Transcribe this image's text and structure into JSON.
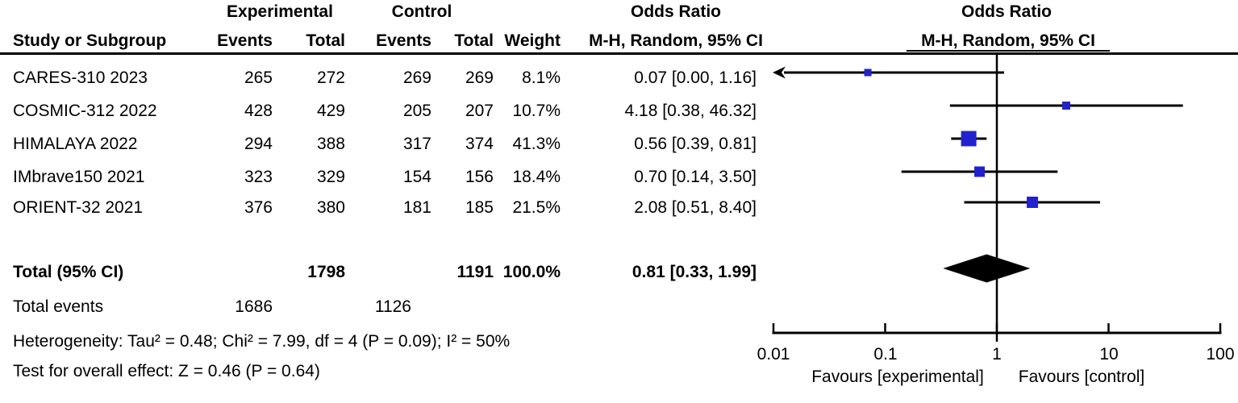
{
  "figure": {
    "group_headers": {
      "experimental": "Experimental",
      "control": "Control"
    },
    "columns": {
      "study": "Study or Subgroup",
      "events": "Events",
      "total": "Total",
      "weight": "Weight"
    },
    "or_col_header": {
      "title": "Odds Ratio",
      "sub": "M-H, Random, 95% CI"
    },
    "plot_header": {
      "title": "Odds Ratio",
      "sub": "M-H, Random, 95% CI"
    },
    "rows": [
      {
        "study": "CARES-310 2023",
        "exp_events": "265",
        "exp_total": "272",
        "ctl_events": "269",
        "ctl_total": "269",
        "weight": "8.1%",
        "or_ci": "0.07 [0.00, 1.16]"
      },
      {
        "study": "COSMIC-312  2022",
        "exp_events": "428",
        "exp_total": "429",
        "ctl_events": "205",
        "ctl_total": "207",
        "weight": "10.7%",
        "or_ci": "4.18 [0.38, 46.32]"
      },
      {
        "study": "HIMALAYA 2022",
        "exp_events": "294",
        "exp_total": "388",
        "ctl_events": "317",
        "ctl_total": "374",
        "weight": "41.3%",
        "or_ci": "0.56 [0.39, 0.81]"
      },
      {
        "study": "IMbrave150 2021",
        "exp_events": "323",
        "exp_total": "329",
        "ctl_events": "154",
        "ctl_total": "156",
        "weight": "18.4%",
        "or_ci": "0.70 [0.14, 3.50]"
      },
      {
        "study": "ORIENT-32 2021",
        "exp_events": "376",
        "exp_total": "380",
        "ctl_events": "181",
        "ctl_total": "185",
        "weight": "21.5%",
        "or_ci": "2.08 [0.51, 8.40]"
      }
    ],
    "total_row": {
      "label": "Total (95% CI)",
      "exp_total": "1798",
      "ctl_total": "1191",
      "weight": "100.0%",
      "or_ci": "0.81 [0.33, 1.99]"
    },
    "total_events": {
      "label": "Total events",
      "exp": "1686",
      "ctl": "1126"
    },
    "heterogeneity": "Heterogeneity: Tau² = 0.48; Chi² = 7.99, df = 4 (P = 0.09); I² = 50%",
    "overall_effect": "Test for overall effect: Z = 0.46 (P = 0.64)"
  },
  "chart_data": {
    "type": "forest",
    "title": "Odds Ratio",
    "subtitle": "M-H, Random, 95% CI",
    "effect_measure": "Odds Ratio, M-H, Random, 95% CI",
    "x_axis": {
      "scale": "log10",
      "min": 0.01,
      "max": 100,
      "ticks": [
        0.01,
        0.1,
        1,
        10,
        100
      ],
      "tick_labels": [
        "0.01",
        "0.1",
        "1",
        "10",
        "100"
      ]
    },
    "null_line": 1,
    "studies": [
      {
        "name": "CARES-310 2023",
        "or": 0.07,
        "ci_low": 0.0,
        "ci_high": 1.16,
        "weight_pct": 8.1
      },
      {
        "name": "COSMIC-312 2022",
        "or": 4.18,
        "ci_low": 0.38,
        "ci_high": 46.32,
        "weight_pct": 10.7
      },
      {
        "name": "HIMALAYA 2022",
        "or": 0.56,
        "ci_low": 0.39,
        "ci_high": 0.81,
        "weight_pct": 41.3
      },
      {
        "name": "IMbrave150 2021",
        "or": 0.7,
        "ci_low": 0.14,
        "ci_high": 3.5,
        "weight_pct": 18.4
      },
      {
        "name": "ORIENT-32 2021",
        "or": 2.08,
        "ci_low": 0.51,
        "ci_high": 8.4,
        "weight_pct": 21.5
      }
    ],
    "summary": {
      "label": "Total (95% CI)",
      "or": 0.81,
      "ci_low": 0.33,
      "ci_high": 1.99
    },
    "favours_left": "Favours [experimental]",
    "favours_right": "Favours [control]",
    "marker_color": "#2222CC",
    "line_color": "#000000"
  }
}
